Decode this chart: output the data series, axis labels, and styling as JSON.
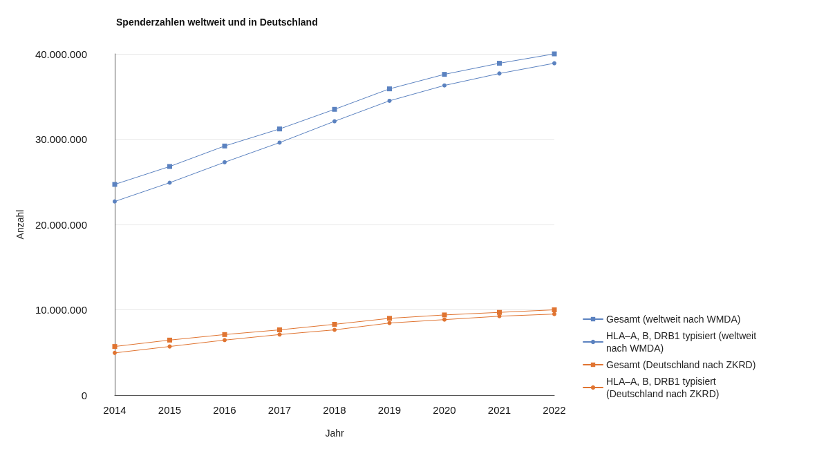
{
  "chart_data": {
    "type": "line",
    "title": "Spenderzahlen weltweit und in Deutschland",
    "xlabel": "Jahr",
    "ylabel": "Anzahl",
    "categories": [
      "2014",
      "2015",
      "2016",
      "2017",
      "2018",
      "2019",
      "2020",
      "2021",
      "2022"
    ],
    "series": [
      {
        "name": "Gesamt (weltweit nach WMDA)",
        "color": "#5b82c0",
        "marker": "square",
        "values": [
          24700000,
          26800000,
          29200000,
          31200000,
          33500000,
          35900000,
          37600000,
          38900000,
          40000000
        ]
      },
      {
        "name": "HLA–A, B, DRB1 typisiert (weltweit nach WMDA)",
        "color": "#5b82c0",
        "marker": "circle",
        "values": [
          22700000,
          24900000,
          27300000,
          29600000,
          32100000,
          34500000,
          36300000,
          37700000,
          38900000
        ]
      },
      {
        "name": "Gesamt (Deutschland nach ZKRD)",
        "color": "#e07431",
        "marker": "square",
        "values": [
          5700000,
          6450000,
          7100000,
          7650000,
          8300000,
          9000000,
          9400000,
          9700000,
          10000000
        ]
      },
      {
        "name": "HLA–A, B, DRB1 typisiert (Deutschland nach ZKRD)",
        "color": "#e07431",
        "marker": "circle",
        "values": [
          4950000,
          5700000,
          6450000,
          7100000,
          7650000,
          8450000,
          8850000,
          9250000,
          9500000
        ]
      }
    ],
    "ylim": [
      0,
      40000000
    ],
    "yticks": [
      {
        "value": 0,
        "label": "0"
      },
      {
        "value": 10000000,
        "label": "10.000.000"
      },
      {
        "value": 20000000,
        "label": "20.000.000"
      },
      {
        "value": 30000000,
        "label": "30.000.000"
      },
      {
        "value": 40000000,
        "label": "40.000.000"
      }
    ],
    "grid": "y",
    "legend": "right",
    "line_style": "solid"
  }
}
